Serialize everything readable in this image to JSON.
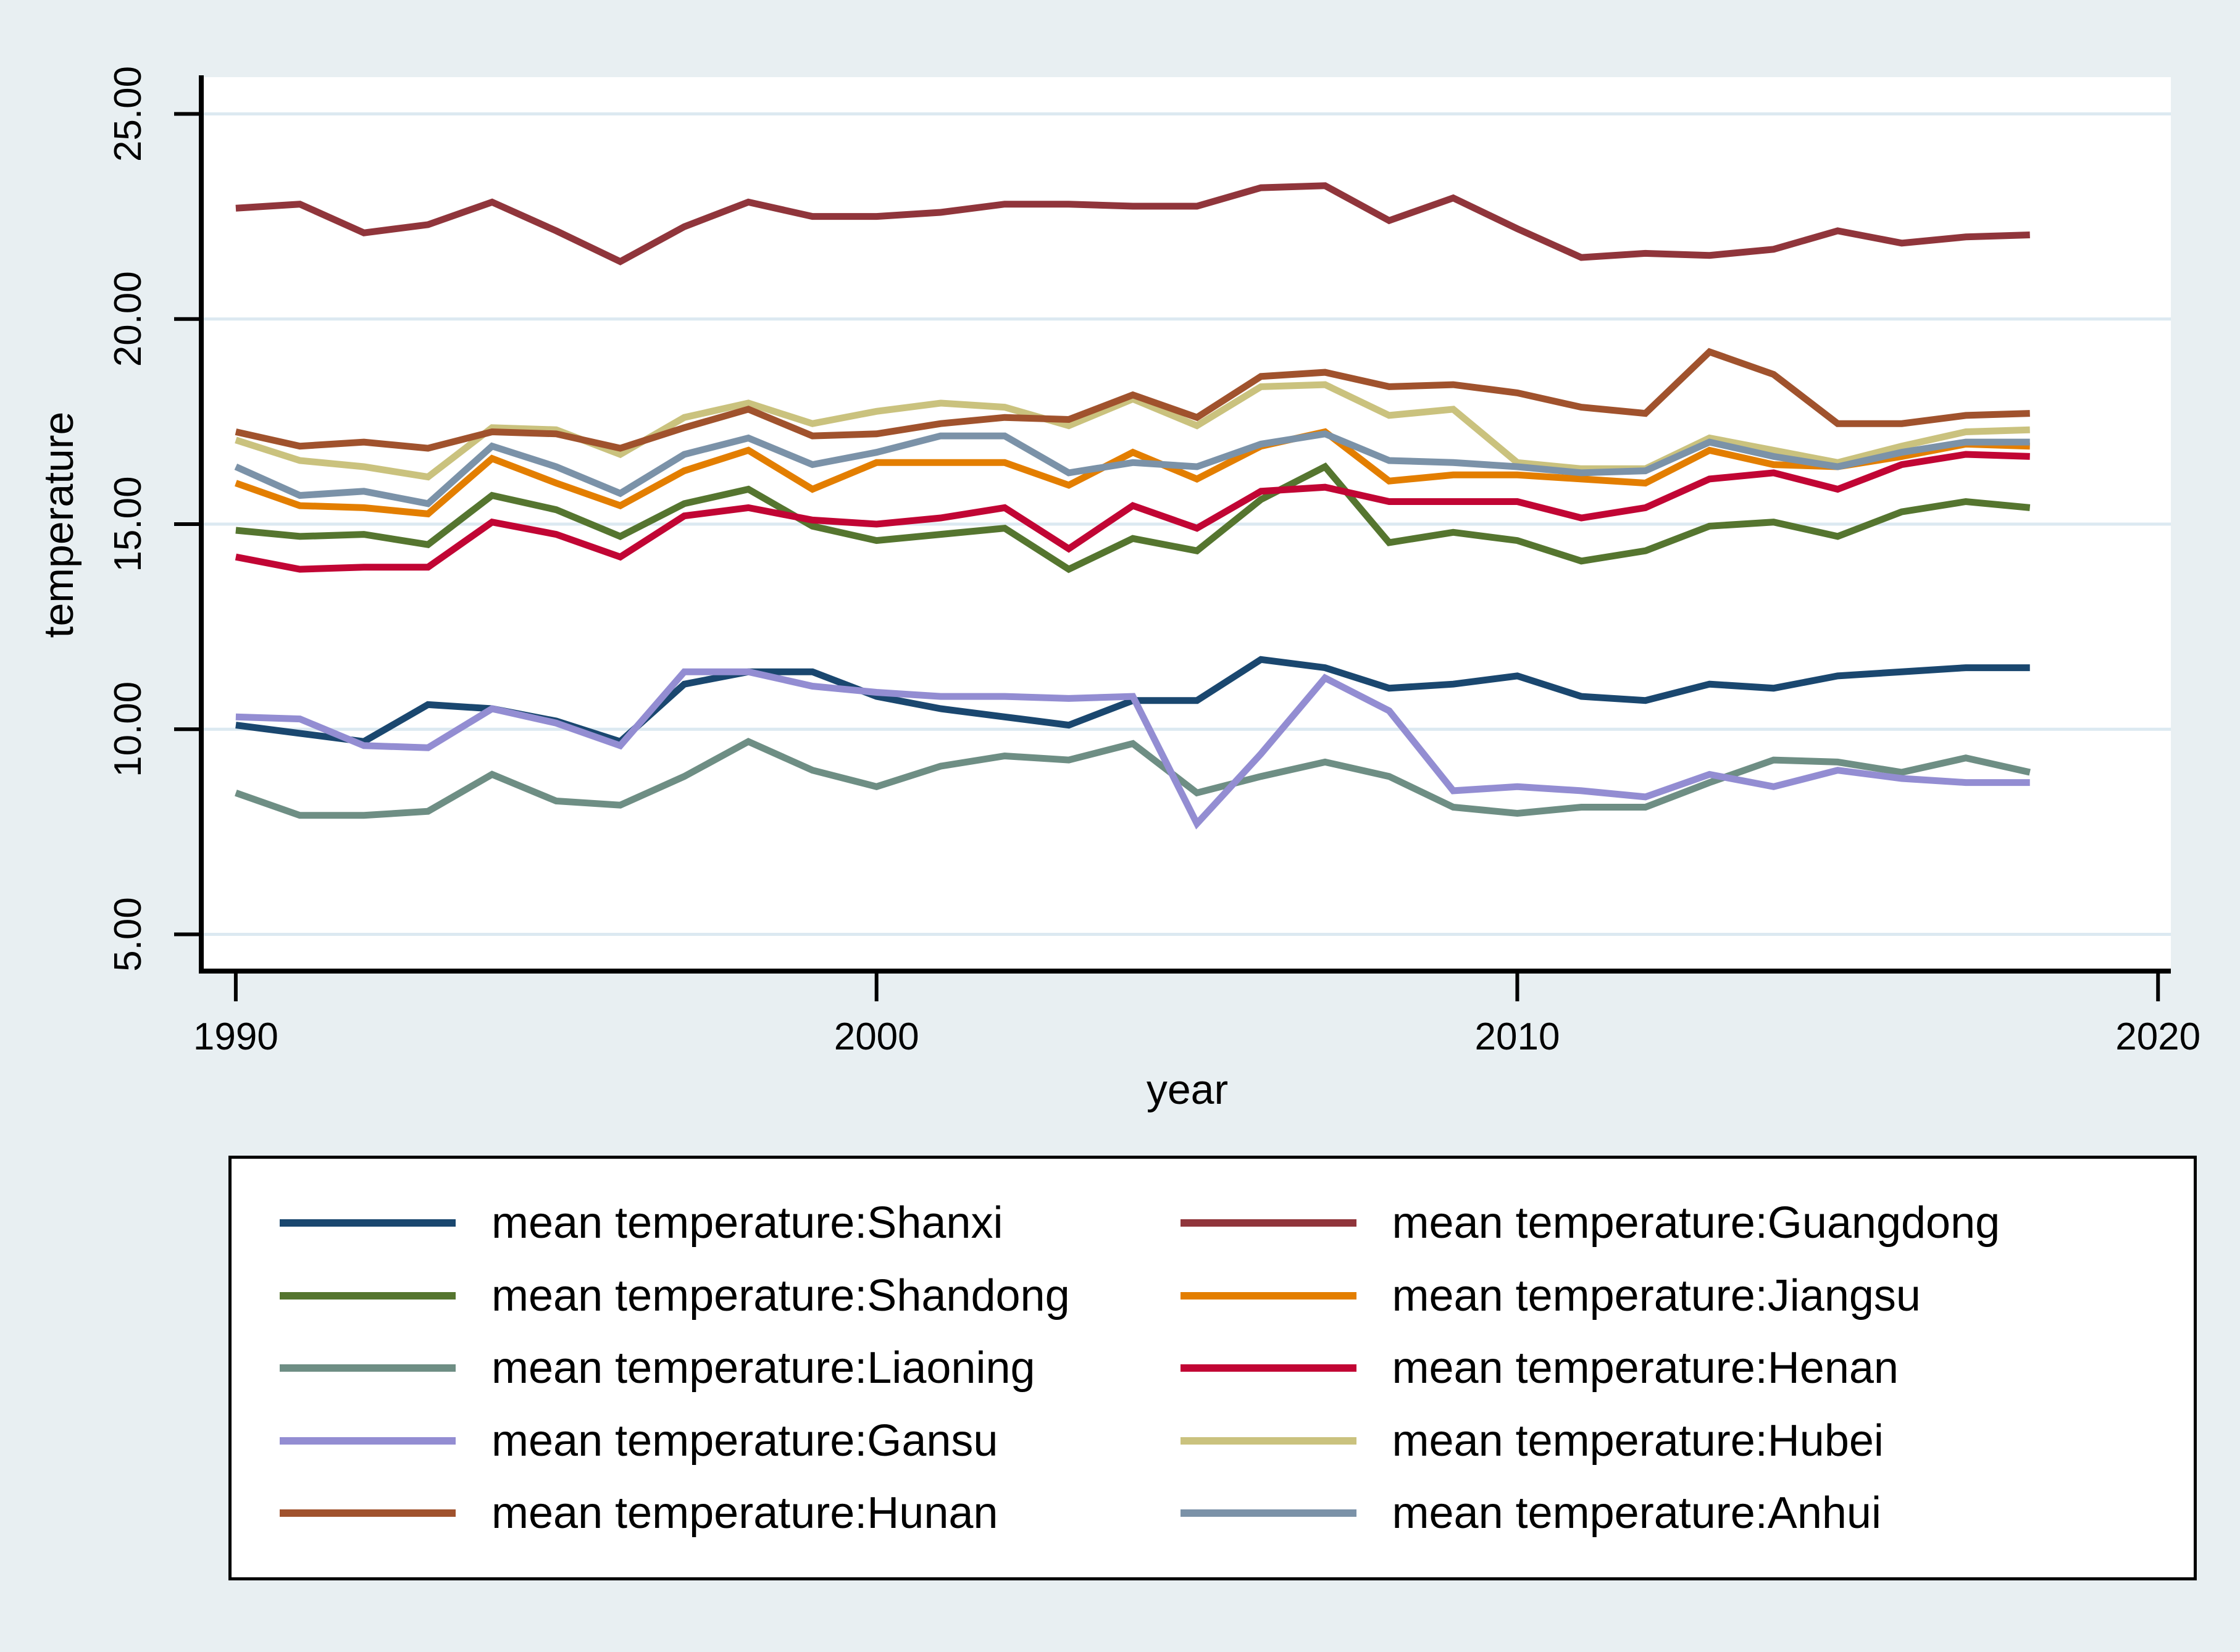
{
  "colors": {
    "background": "#E8EFF2",
    "plot_background": "#FFFFFF",
    "gridline": "#DCE9F1",
    "axis": "#000000",
    "text": "#000000",
    "legend_background": "#FFFFFF",
    "legend_border": "#000000"
  },
  "chart_data": {
    "type": "line",
    "title": "",
    "xlabel": "year",
    "ylabel": "temperature",
    "grid": "horizontal",
    "legend_position": "bottom",
    "legend_columns": 2,
    "xlim": [
      1989.5,
      2020.2
    ],
    "ylim": [
      4.15,
      25.85
    ],
    "xticks": {
      "values": [
        1990,
        2000,
        2010,
        2020
      ],
      "labels": [
        "1990",
        "2000",
        "2010",
        "2020"
      ]
    },
    "yticks": {
      "values": [
        5,
        10,
        15,
        20,
        25
      ],
      "labels": [
        "5.00",
        "10.00",
        "15.00",
        "20.00",
        "25.00"
      ]
    },
    "x": [
      1990,
      1991,
      1992,
      1993,
      1994,
      1995,
      1996,
      1997,
      1998,
      1999,
      2000,
      2001,
      2002,
      2003,
      2004,
      2005,
      2006,
      2007,
      2008,
      2009,
      2010,
      2011,
      2012,
      2013,
      2014,
      2015,
      2016,
      2017,
      2018
    ],
    "series": [
      {
        "name": "Shanxi",
        "label": "mean temperature:Shanxi",
        "color": "#1A476F",
        "values": [
          10.1,
          9.9,
          9.7,
          10.6,
          10.5,
          10.2,
          9.7,
          11.1,
          11.4,
          11.4,
          10.8,
          10.5,
          10.3,
          10.1,
          10.7,
          10.7,
          11.7,
          11.5,
          11.0,
          11.1,
          11.3,
          10.8,
          10.7,
          11.1,
          11.0,
          11.3,
          11.4,
          11.5,
          11.5
        ]
      },
      {
        "name": "Guangdong",
        "label": "mean temperature:Guangdong",
        "color": "#90353B",
        "values": [
          22.7,
          22.8,
          22.1,
          22.3,
          22.85,
          22.15,
          21.4,
          22.25,
          22.85,
          22.5,
          22.5,
          22.6,
          22.8,
          22.8,
          22.75,
          22.75,
          23.2,
          23.25,
          22.4,
          22.95,
          22.2,
          21.5,
          21.6,
          21.55,
          21.7,
          22.15,
          21.85,
          22.0,
          22.05
        ]
      },
      {
        "name": "Shandong",
        "label": "mean temperature:Shandong",
        "color": "#55752F",
        "values": [
          14.85,
          14.7,
          14.75,
          14.5,
          15.7,
          15.35,
          14.7,
          15.5,
          15.85,
          14.95,
          14.6,
          14.75,
          14.9,
          13.9,
          14.65,
          14.35,
          15.6,
          16.4,
          14.55,
          14.8,
          14.6,
          14.1,
          14.35,
          14.95,
          15.05,
          14.7,
          15.3,
          15.55,
          15.4
        ]
      },
      {
        "name": "Jiangsu",
        "label": "mean temperature:Jiangsu",
        "color": "#E37E00",
        "values": [
          16.0,
          15.45,
          15.4,
          15.25,
          16.6,
          16.0,
          15.45,
          16.3,
          16.8,
          15.85,
          16.5,
          16.5,
          16.5,
          15.95,
          16.75,
          16.1,
          16.9,
          17.25,
          16.05,
          16.2,
          16.2,
          16.1,
          16.0,
          16.8,
          16.45,
          16.4,
          16.65,
          16.95,
          16.9
        ]
      },
      {
        "name": "Liaoning",
        "label": "mean temperature:Liaoning",
        "color": "#6E8E84",
        "values": [
          8.45,
          7.9,
          7.9,
          8.0,
          8.9,
          8.25,
          8.15,
          8.85,
          9.7,
          9.0,
          8.6,
          9.1,
          9.35,
          9.25,
          9.65,
          8.45,
          8.85,
          9.2,
          8.85,
          8.1,
          7.95,
          8.1,
          8.1,
          8.7,
          9.25,
          9.2,
          8.95,
          9.3,
          8.95
        ]
      },
      {
        "name": "Henan",
        "label": "mean temperature:Henan",
        "color": "#C10534",
        "values": [
          14.2,
          13.9,
          13.95,
          13.95,
          15.05,
          14.75,
          14.2,
          15.2,
          15.4,
          15.1,
          15.0,
          15.15,
          15.4,
          14.4,
          15.45,
          14.9,
          15.8,
          15.9,
          15.55,
          15.55,
          15.55,
          15.15,
          15.4,
          16.1,
          16.25,
          15.85,
          16.45,
          16.7,
          16.65
        ]
      },
      {
        "name": "Gansu",
        "label": "mean temperature:Gansu",
        "color": "#938DD2",
        "values": [
          10.3,
          10.25,
          9.6,
          9.55,
          10.5,
          10.15,
          9.6,
          11.4,
          11.4,
          11.05,
          10.9,
          10.8,
          10.8,
          10.75,
          10.8,
          7.7,
          9.4,
          11.25,
          10.45,
          8.5,
          8.6,
          8.5,
          8.35,
          8.9,
          8.6,
          9.0,
          8.8,
          8.7,
          8.7
        ]
      },
      {
        "name": "Hubei",
        "label": "mean temperature:Hubei",
        "color": "#CAC27E",
        "values": [
          17.05,
          16.55,
          16.4,
          16.15,
          17.35,
          17.3,
          16.7,
          17.6,
          17.95,
          17.45,
          17.75,
          17.95,
          17.85,
          17.4,
          18.05,
          17.4,
          18.35,
          18.4,
          17.65,
          17.8,
          16.5,
          16.35,
          16.35,
          17.1,
          16.8,
          16.5,
          16.9,
          17.25,
          17.3
        ]
      },
      {
        "name": "Hunan",
        "label": "mean temperature:Hunan",
        "color": "#A0522D",
        "values": [
          17.25,
          16.9,
          17.0,
          16.85,
          17.25,
          17.2,
          16.85,
          17.35,
          17.8,
          17.15,
          17.2,
          17.45,
          17.6,
          17.55,
          18.15,
          17.6,
          18.6,
          18.7,
          18.35,
          18.4,
          18.2,
          17.85,
          17.7,
          19.2,
          18.65,
          17.45,
          17.45,
          17.65,
          17.7
        ]
      },
      {
        "name": "Anhui",
        "label": "mean temperature:Anhui",
        "color": "#7B92A8",
        "values": [
          16.4,
          15.7,
          15.8,
          15.5,
          16.9,
          16.4,
          15.75,
          16.7,
          17.1,
          16.45,
          16.75,
          17.15,
          17.15,
          16.25,
          16.5,
          16.4,
          16.95,
          17.2,
          16.55,
          16.5,
          16.4,
          16.25,
          16.3,
          17.0,
          16.65,
          16.4,
          16.75,
          17.0,
          17.0
        ]
      }
    ]
  }
}
